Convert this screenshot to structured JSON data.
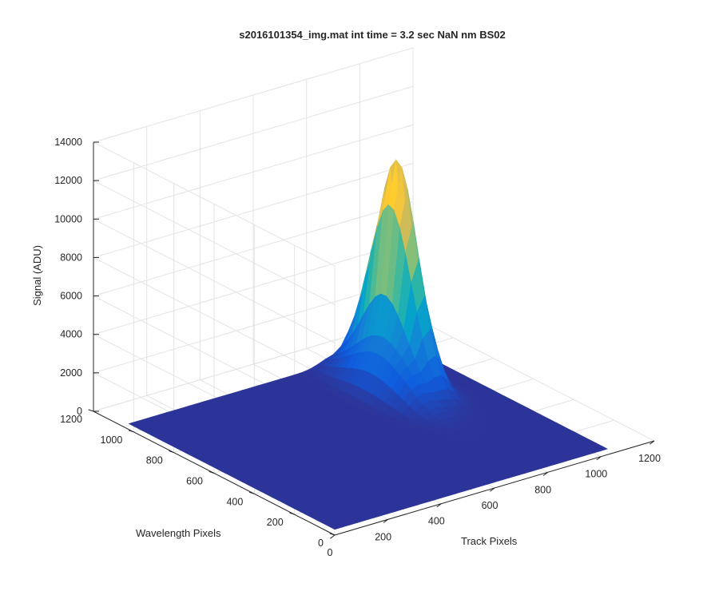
{
  "chart_data": {
    "type": "surface",
    "title": "s2016101354_img.mat int time = 3.2 sec  NaN nm BS02",
    "xlabel": "Track Pixels",
    "ylabel": "Wavelength Pixels",
    "zlabel": "Signal (ADU)",
    "xlim": [
      0,
      1200
    ],
    "ylim": [
      0,
      1200
    ],
    "zlim": [
      0,
      14000
    ],
    "x_ticks": [
      "0",
      "200",
      "400",
      "600",
      "800",
      "1000",
      "1200"
    ],
    "y_ticks": [
      "0",
      "200",
      "400",
      "600",
      "800",
      "1000",
      "1200"
    ],
    "z_ticks": [
      "0",
      "2000",
      "4000",
      "6000",
      "8000",
      "10000",
      "12000",
      "14000"
    ],
    "grid": true,
    "colormap": "parula",
    "data_extent": {
      "x": [
        0,
        1024
      ],
      "y": [
        0,
        1024
      ]
    },
    "baseline_signal": 300,
    "peak": {
      "track_pixel": 850,
      "wavelength_pixel": 820,
      "signal": 11500
    }
  },
  "colors": {
    "surface_base": "#352a87",
    "parula": [
      "#352a87",
      "#0f5cdd",
      "#1481d6",
      "#06a4ca",
      "#2eb7a4",
      "#87bf77",
      "#d1bb59",
      "#fec832",
      "#f9fb0e"
    ]
  }
}
